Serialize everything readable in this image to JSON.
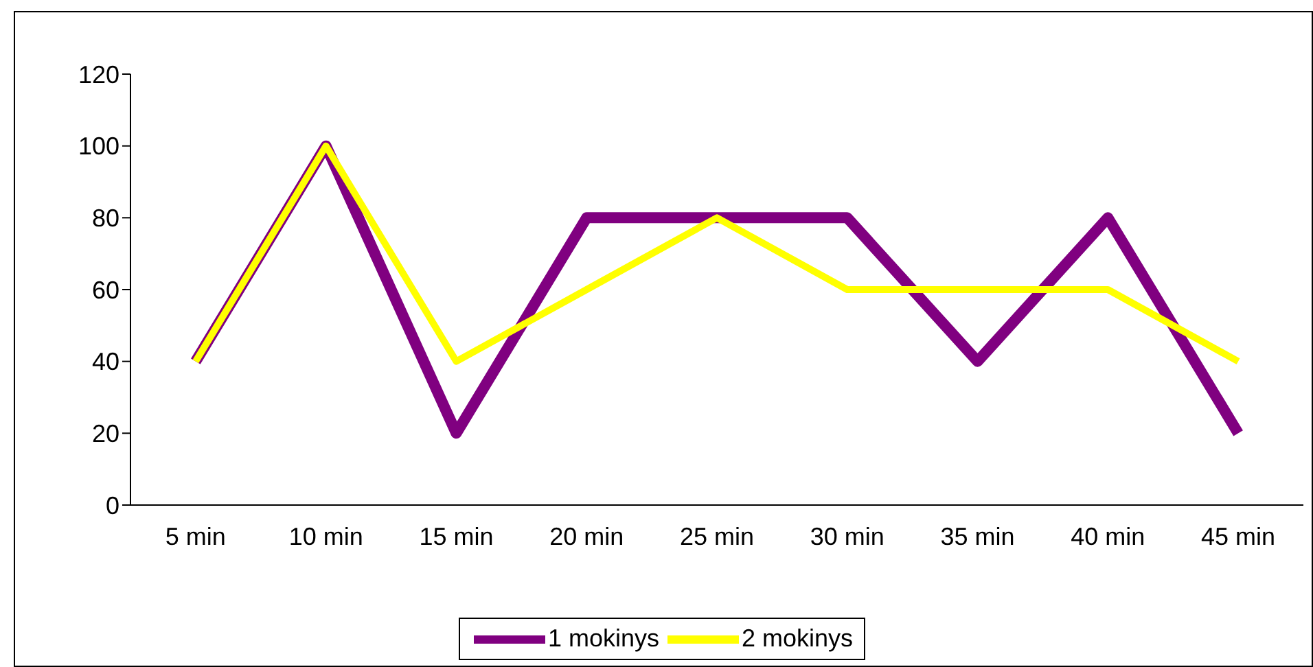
{
  "chart_data": {
    "type": "line",
    "categories": [
      "5 min",
      "10 min",
      "15 min",
      "20 min",
      "25 min",
      "30 min",
      "35 min",
      "40 min",
      "45 min"
    ],
    "series": [
      {
        "name": "1 mokinys",
        "color": "#800080",
        "values": [
          40,
          100,
          20,
          80,
          80,
          80,
          40,
          80,
          20
        ]
      },
      {
        "name": "2 mokinys",
        "color": "#ffff00",
        "values": [
          40,
          100,
          40,
          60,
          80,
          60,
          60,
          60,
          40
        ]
      }
    ],
    "ylim": [
      0,
      120
    ],
    "yticks": [
      0,
      20,
      40,
      60,
      80,
      100,
      120
    ],
    "legend": "bottom",
    "marker": "none",
    "line_style": "solid"
  }
}
